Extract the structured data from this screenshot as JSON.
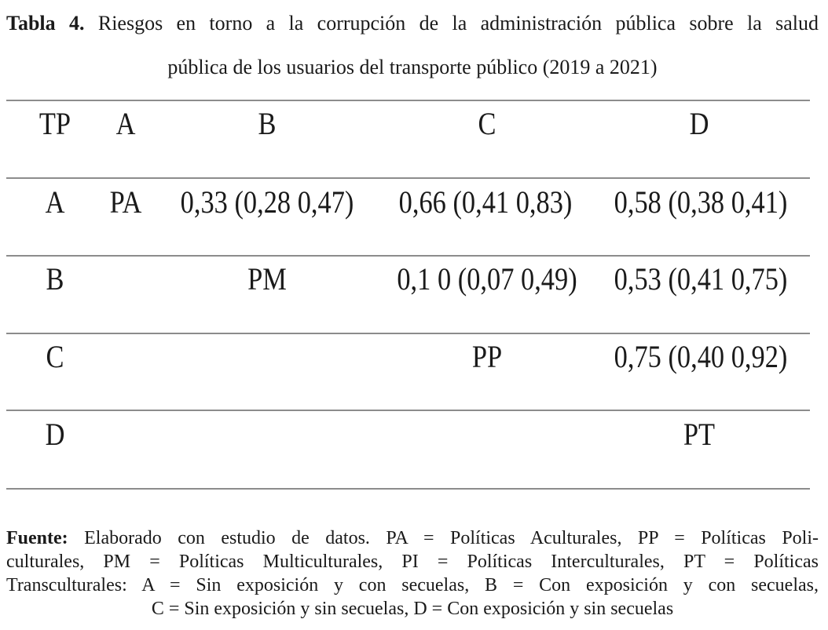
{
  "caption": {
    "label": "Tabla 4.",
    "line1": "Riesgos en torno a la corrupción de la administración pública sobre la salud",
    "line2": "pública de los usuarios del transporte público (2019 a 2021)"
  },
  "table": {
    "headers": [
      "TP",
      "A",
      "B",
      "C",
      "D"
    ],
    "rows": [
      [
        "A",
        "PA",
        "0,33 (0,28 0,47)",
        "0,66 (0,41 0,83)",
        "0,58 (0,38 0,41)"
      ],
      [
        "B",
        "",
        "PM",
        "0,1 0 (0,07 0,49)",
        "0,53 (0,41 0,75)"
      ],
      [
        "C",
        "",
        "",
        "PP",
        "0,75 (0,40 0,92)"
      ],
      [
        "D",
        "",
        "",
        "",
        "PT"
      ]
    ]
  },
  "note": {
    "label": "Fuente:",
    "line1": "Elaborado con estudio de datos. PA = Políticas Aculturales, PP = Políticas Poli-",
    "line2": "culturales, PM = Políticas Multiculturales, PI = Políticas Interculturales, PT = Políticas",
    "line3": "Transculturales: A = Sin exposición y con secuelas, B = Con exposición y con secuelas,",
    "line4": "C = Sin exposición y sin secuelas, D = Con exposición y sin secuelas"
  }
}
